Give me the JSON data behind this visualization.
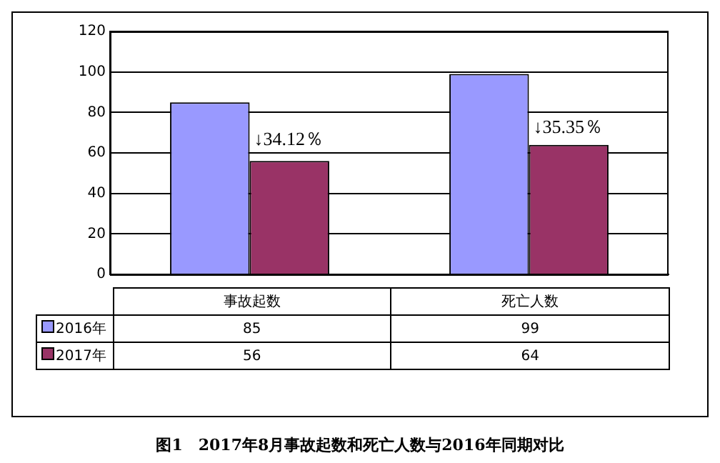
{
  "chart_data": {
    "type": "bar",
    "title": "图1　2017年8月事故起数和死亡人数与2016年同期对比",
    "categories": [
      "事故起数",
      "死亡人数"
    ],
    "series": [
      {
        "name": "2016年",
        "color": "#9999ff",
        "values": [
          85,
          99
        ]
      },
      {
        "name": "2017年",
        "color": "#993366",
        "values": [
          56,
          64
        ]
      }
    ],
    "ylim": [
      0,
      120
    ],
    "yticks": [
      0,
      20,
      40,
      60,
      80,
      100,
      120
    ],
    "grid": "y",
    "legend": "bottom",
    "data_labels": true,
    "annotations": [
      {
        "text": "↓34.12％",
        "x": "事故起数",
        "y": 61
      },
      {
        "text": "↓35.35％",
        "x": "死亡人数",
        "y": 67
      }
    ]
  }
}
